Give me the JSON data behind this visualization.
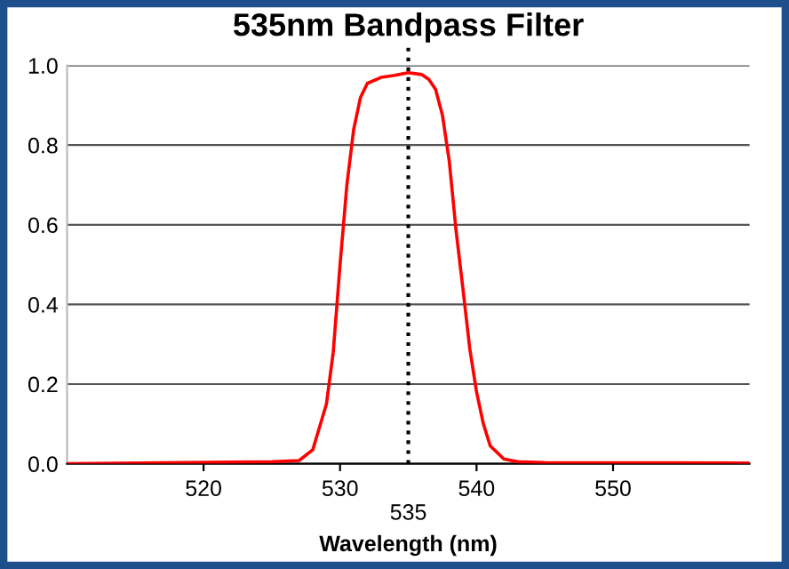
{
  "chart_data": {
    "type": "line",
    "title": "535nm Bandpass Filter",
    "xlabel": "Wavelength (nm)",
    "x": [
      510,
      525,
      527,
      528,
      529,
      529.5,
      530,
      530.5,
      531,
      531.5,
      532,
      533,
      534,
      535,
      536,
      536.5,
      537,
      537.5,
      538,
      538.5,
      539,
      539.5,
      540,
      540.5,
      541,
      542,
      543,
      545,
      560
    ],
    "series": [
      {
        "color": "#ff0000",
        "values": [
          0,
          0.005,
          0.008,
          0.035,
          0.15,
          0.28,
          0.5,
          0.7,
          0.84,
          0.92,
          0.955,
          0.97,
          0.975,
          0.982,
          0.977,
          0.965,
          0.94,
          0.875,
          0.76,
          0.585,
          0.44,
          0.29,
          0.18,
          0.1,
          0.045,
          0.012,
          0.005,
          0.003,
          0.002
        ]
      }
    ],
    "xlim": [
      510,
      560
    ],
    "xticks": [
      520,
      530,
      540,
      550
    ],
    "ylim": [
      0,
      1.0
    ],
    "yticks": [
      {
        "value": 0,
        "label": "0.0"
      },
      {
        "value": 0.2,
        "label": "0.2"
      },
      {
        "value": 0.4,
        "label": "0.4"
      },
      {
        "value": 0.6,
        "label": "0.6"
      },
      {
        "value": 0.8,
        "label": "0.8"
      },
      {
        "value": 1.0,
        "label": "1.0"
      }
    ],
    "grid": "y",
    "marker": "none",
    "line_style": "solid",
    "ref_lines": [
      {
        "axis": "x",
        "value": 535,
        "label": "535",
        "color": "#000000",
        "line_style": "dotted"
      }
    ]
  }
}
